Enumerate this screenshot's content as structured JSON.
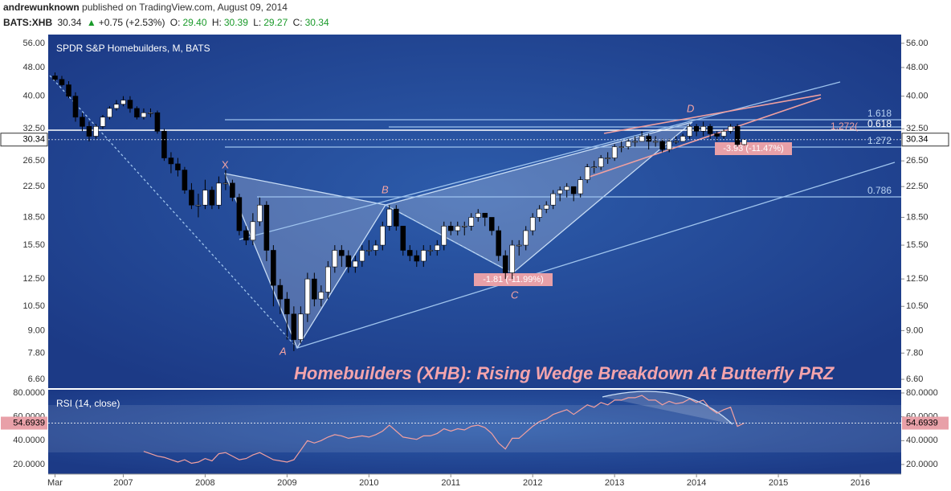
{
  "header": {
    "author": "andrewunknown",
    "published": "published on TradingView.com, August 09, 2014",
    "symbol": "BATS:XHB",
    "price": "30.34",
    "change": "+0.75 (+2.53%)",
    "o_label": "O:",
    "o": "29.40",
    "h_label": "H:",
    "h": "30.39",
    "l_label": "L:",
    "l": "29.27",
    "c_label": "C:",
    "c": "30.34"
  },
  "chart_data": {
    "type": "candlestick",
    "legend": "SPDR S&P Homebuilders, M, BATS",
    "title": "Homebuilders (XHB): Rising Wedge Breakdown At Butterfly PRZ",
    "up_color": "#ffffff",
    "down_color": "#000000",
    "log_scale": true,
    "grid": false,
    "x": [
      "2006-03",
      "2006-04",
      "2006-05",
      "2006-06",
      "2006-07",
      "2006-08",
      "2006-09",
      "2006-10",
      "2006-11",
      "2006-12",
      "2007-01",
      "2007-02",
      "2007-03",
      "2007-04",
      "2007-05",
      "2007-06",
      "2007-07",
      "2007-08",
      "2007-09",
      "2007-10",
      "2007-11",
      "2007-12",
      "2008-01",
      "2008-02",
      "2008-03",
      "2008-04",
      "2008-05",
      "2008-06",
      "2008-07",
      "2008-08",
      "2008-09",
      "2008-10",
      "2008-11",
      "2008-12",
      "2009-01",
      "2009-02",
      "2009-03",
      "2009-04",
      "2009-05",
      "2009-06",
      "2009-07",
      "2009-08",
      "2009-09",
      "2009-10",
      "2009-11",
      "2009-12",
      "2010-01",
      "2010-02",
      "2010-03",
      "2010-04",
      "2010-05",
      "2010-06",
      "2010-07",
      "2010-08",
      "2010-09",
      "2010-10",
      "2010-11",
      "2010-12",
      "2011-01",
      "2011-02",
      "2011-03",
      "2011-04",
      "2011-05",
      "2011-06",
      "2011-07",
      "2011-08",
      "2011-09",
      "2011-10",
      "2011-11",
      "2011-12",
      "2012-01",
      "2012-02",
      "2012-03",
      "2012-04",
      "2012-05",
      "2012-06",
      "2012-07",
      "2012-08",
      "2012-09",
      "2012-10",
      "2012-11",
      "2012-12",
      "2013-01",
      "2013-02",
      "2013-03",
      "2013-04",
      "2013-05",
      "2013-06",
      "2013-07",
      "2013-08",
      "2013-09",
      "2013-10",
      "2013-11",
      "2013-12",
      "2014-01",
      "2014-02",
      "2014-03",
      "2014-04",
      "2014-05",
      "2014-06",
      "2014-07",
      "2014-08"
    ],
    "open": [
      45.5,
      44.5,
      43,
      40,
      35,
      33,
      31,
      33,
      35,
      37,
      38,
      39,
      37,
      35,
      36,
      36,
      32,
      27,
      26,
      25,
      22,
      20,
      20,
      22,
      20,
      23,
      23,
      21,
      17,
      16,
      18,
      20,
      15,
      12,
      11,
      10,
      8.5,
      10,
      12.5,
      11,
      11.5,
      13.5,
      15,
      14.5,
      13.5,
      14,
      15,
      15,
      15.5,
      17.5,
      19.5,
      17.5,
      15,
      14.5,
      14,
      15,
      15,
      15.5,
      17.5,
      17,
      17.5,
      17.5,
      18.5,
      19,
      18.5,
      17,
      14.5,
      13,
      15.5,
      15.5,
      17,
      18.5,
      19.5,
      20,
      21.5,
      22,
      22.5,
      21.5,
      23.5,
      25.5,
      25.5,
      27,
      27,
      29,
      29,
      30,
      30,
      31,
      30,
      30,
      28.5,
      30,
      30,
      31,
      33,
      32,
      33,
      31.5,
      31,
      32,
      33,
      29.4
    ],
    "high": [
      46.5,
      45.5,
      44,
      41,
      36,
      34,
      33.5,
      35.5,
      37.5,
      39,
      40,
      40,
      37.5,
      37,
      37,
      36.5,
      32.5,
      28,
      27,
      25.5,
      23,
      21.5,
      23.5,
      22.5,
      24,
      25,
      23.5,
      21.5,
      17.5,
      19,
      21,
      20.5,
      15.5,
      12.5,
      11.5,
      10.5,
      10.5,
      13,
      13,
      12,
      14,
      15.5,
      15.5,
      15,
      14.5,
      15.5,
      16,
      16,
      18,
      20,
      20,
      17.5,
      15.5,
      15,
      15.5,
      15.5,
      16,
      18,
      18,
      18,
      18,
      19,
      19.5,
      19,
      18.5,
      17.5,
      15,
      16,
      16,
      17.5,
      19,
      20,
      20.5,
      22,
      22.5,
      23,
      22.5,
      24,
      26,
      26.5,
      27.5,
      28,
      29.5,
      30,
      30.5,
      31,
      32,
      31.5,
      31,
      30.5,
      30.5,
      31,
      31.5,
      33.5,
      33.5,
      34,
      33.5,
      32,
      32.5,
      33.5,
      33.5,
      30.39
    ],
    "low": [
      44,
      42.5,
      39.5,
      34,
      32,
      30,
      30.5,
      32.5,
      34.5,
      36.5,
      37.5,
      36,
      34.5,
      34.5,
      35,
      31.5,
      26.5,
      24.5,
      24,
      21.5,
      19.5,
      18.5,
      19.5,
      19.5,
      19.5,
      22,
      20.5,
      16.5,
      15.5,
      15.5,
      17.5,
      14,
      10.5,
      10,
      8.5,
      7.9,
      8.3,
      9.5,
      10.5,
      10.5,
      11,
      13,
      13.5,
      13,
      13,
      13.5,
      14.5,
      14.5,
      15,
      17,
      17,
      14.5,
      14,
      13.5,
      13.5,
      14.5,
      14.5,
      15,
      16.5,
      16.5,
      16.5,
      17,
      18,
      17.5,
      16.5,
      14,
      12.5,
      12.5,
      14.5,
      15,
      16.5,
      18,
      19,
      19.5,
      20.5,
      21,
      20.5,
      21,
      23,
      24.5,
      25,
      26,
      26.5,
      28,
      28.5,
      29,
      30,
      28.5,
      29,
      28,
      28,
      29.5,
      30,
      30.5,
      31,
      31,
      30.5,
      30,
      30.5,
      31.5,
      29,
      29.27
    ],
    "close": [
      44.5,
      43,
      40,
      35,
      33,
      31,
      33,
      35,
      37,
      38,
      39,
      37,
      35,
      36,
      36,
      32,
      27,
      26,
      25,
      22,
      20,
      20,
      22,
      20,
      23,
      23,
      21,
      17,
      16,
      18,
      20,
      15,
      12,
      11,
      10,
      8.5,
      10,
      12.5,
      11,
      11.5,
      13.5,
      15,
      14.5,
      13.5,
      14,
      15,
      15,
      15.5,
      17.5,
      19.5,
      17.5,
      15,
      14.5,
      14,
      15,
      15,
      15.5,
      17.5,
      17,
      17.5,
      17.5,
      18.5,
      19,
      18.5,
      17,
      14.5,
      13,
      15.5,
      15.5,
      17,
      18.5,
      19.5,
      20,
      21.5,
      22,
      22.5,
      21.5,
      23.5,
      25.5,
      25.5,
      27,
      27,
      29,
      29,
      30,
      30,
      31,
      30,
      30,
      28.5,
      30,
      30,
      31,
      33,
      32,
      33,
      31.5,
      31,
      32,
      33,
      29.4,
      30.34
    ],
    "xlim": [
      "2006-02",
      "2016-07"
    ],
    "xticks": [
      {
        "value": "2006-03",
        "label": "Mar"
      },
      {
        "value": "2007-01",
        "label": "2007"
      },
      {
        "value": "2008-01",
        "label": "2008"
      },
      {
        "value": "2009-01",
        "label": "2009"
      },
      {
        "value": "2010-01",
        "label": "2010"
      },
      {
        "value": "2011-01",
        "label": "2011"
      },
      {
        "value": "2012-01",
        "label": "2012"
      },
      {
        "value": "2013-01",
        "label": "2013"
      },
      {
        "value": "2014-01",
        "label": "2014"
      },
      {
        "value": "2015-01",
        "label": "2015"
      },
      {
        "value": "2016-01",
        "label": "2016"
      }
    ],
    "ylim": [
      6.24,
      59.2
    ],
    "yticks": [
      {
        "value": 6.6,
        "label": "6.60"
      },
      {
        "value": 7.8,
        "label": "7.80"
      },
      {
        "value": 9,
        "label": "9.00"
      },
      {
        "value": 10.5,
        "label": "10.50"
      },
      {
        "value": 12.5,
        "label": "12.50"
      },
      {
        "value": 15.5,
        "label": "15.50"
      },
      {
        "value": 18.5,
        "label": "18.50"
      },
      {
        "value": 22.5,
        "label": "22.50"
      },
      {
        "value": 26.5,
        "label": "26.50"
      },
      {
        "value": 32.5,
        "label": "32.50"
      },
      {
        "value": 40,
        "label": "40.00"
      },
      {
        "value": 48,
        "label": "48.00"
      },
      {
        "value": 56,
        "label": "56.00"
      }
    ],
    "annotations": {
      "x": "X",
      "a": "A",
      "b": "B",
      "c": "C",
      "d": "D",
      "fib_1618": "1.618",
      "fib_0618": "0.618",
      "fib_1272": "1.272",
      "fib_0786": "0.786",
      "fib_1272b": "1.272(",
      "move_bc": "-1.81 (-11.99%)",
      "move_d": "-3.93 (-11.47%)"
    },
    "indicator": {
      "name": "RSI (14, close)",
      "color": "#f2a0a0",
      "values": [
        null,
        null,
        null,
        null,
        null,
        null,
        null,
        null,
        null,
        null,
        null,
        null,
        null,
        31,
        29,
        27,
        26,
        24,
        22,
        24,
        21,
        22,
        25,
        23,
        29,
        30,
        27,
        24,
        25,
        28,
        30,
        27,
        24,
        23,
        22,
        24,
        32,
        40,
        38,
        40,
        43,
        45,
        44,
        42,
        43,
        44,
        43,
        45,
        48,
        53,
        48,
        43,
        42,
        41,
        44,
        44,
        46,
        50,
        48,
        50,
        49,
        52,
        53,
        51,
        46,
        38,
        33,
        42,
        42,
        47,
        52,
        56,
        58,
        62,
        64,
        66,
        62,
        66,
        70,
        68,
        72,
        70,
        74,
        74,
        76,
        76,
        78,
        74,
        74,
        70,
        73,
        71,
        72,
        75,
        72,
        74,
        67,
        63,
        66,
        68,
        52,
        54.6939
      ],
      "ylim": [
        11.9,
        82.7
      ],
      "yticks": [
        {
          "value": 20,
          "label": "20.0000"
        },
        {
          "value": 40,
          "label": "40.0000"
        },
        {
          "value": 60,
          "label": "60.0000"
        },
        {
          "value": 80,
          "label": "80.0000"
        }
      ]
    }
  }
}
